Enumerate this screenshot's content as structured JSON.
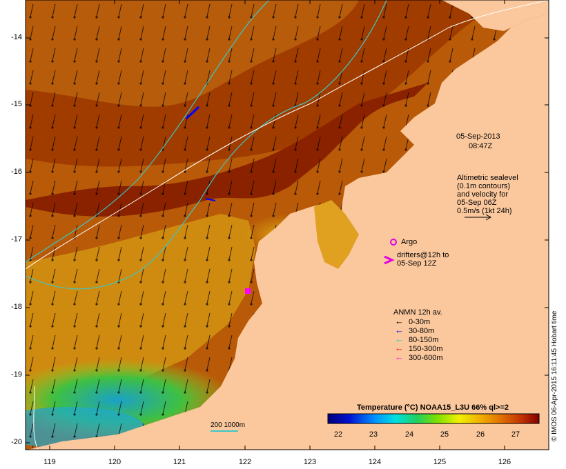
{
  "map": {
    "timestamp_date": "05-Sep-2013",
    "timestamp_time": "08:47Z",
    "lat_ticks": [
      "-14",
      "-15",
      "-16",
      "-17",
      "-18",
      "-19",
      "-20"
    ],
    "lon_ticks": [
      "119",
      "120",
      "121",
      "122",
      "123",
      "124",
      "125",
      "126"
    ]
  },
  "altimetry": {
    "line1": "Altimetric sealevel",
    "line2": "(0.1m contours)",
    "line3": "and velocity for",
    "line4": "05-Sep 06Z",
    "line5": "0.5m/s (1kt 24h)"
  },
  "argo": {
    "label": "Argo",
    "drifters_line1": "drifters@12h to",
    "drifters_line2": "05-Sep 12Z",
    "marker_color": "#e000e0"
  },
  "anmn": {
    "title": "ANMN 12h av.",
    "items": [
      {
        "label": "0-30m",
        "color": "#000000"
      },
      {
        "label": "30-80m",
        "color": "#0000ff"
      },
      {
        "label": "80-150m",
        "color": "#00d0d0"
      },
      {
        "label": "150-300m",
        "color": "#ff0000"
      },
      {
        "label": "300-600m",
        "color": "#ff00ff"
      }
    ]
  },
  "scale": {
    "label": "200  1000m"
  },
  "colorbar": {
    "title": "Temperature (°C) NOAA15_L3U 66% ql>=2",
    "ticks": [
      "22",
      "23",
      "24",
      "25",
      "26",
      "27"
    ]
  },
  "credit": "© IMOS 06-Apr-2015 16:11:45 Hobart time",
  "colors": {
    "land": "#fbc89d",
    "warm_sea": "#b84a00",
    "hot_sea": "#8e1f00",
    "mid_sea": "#d98a10",
    "cool_sea": "#3cc832",
    "cold_sea": "#22a0d0",
    "contour_200m": "#3cc8c8",
    "contour_1000m": "#ffffff"
  }
}
